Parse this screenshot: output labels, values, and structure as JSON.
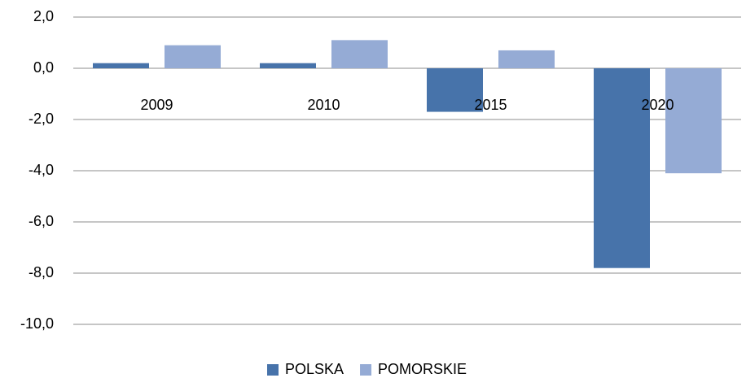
{
  "chart_data": {
    "type": "bar",
    "categories": [
      "2009",
      "2010",
      "2015",
      "2020"
    ],
    "series": [
      {
        "name": "POLSKA",
        "color": "#4773aa",
        "values": [
          0.2,
          0.2,
          -1.7,
          -7.8
        ]
      },
      {
        "name": "POMORSKIE",
        "color": "#95abd5",
        "values": [
          0.9,
          1.1,
          0.7,
          -4.1
        ]
      }
    ],
    "ylim": [
      -10,
      2
    ],
    "yticks": [
      {
        "value": 2,
        "label": "2,0"
      },
      {
        "value": 0,
        "label": "0,0"
      },
      {
        "value": -2,
        "label": "-2,0"
      },
      {
        "value": -4,
        "label": "-4,0"
      },
      {
        "value": -6,
        "label": "-6,0"
      },
      {
        "value": -8,
        "label": "-8,0"
      },
      {
        "value": -10,
        "label": "-10,0"
      }
    ],
    "grid": true,
    "legend": "bottom"
  }
}
